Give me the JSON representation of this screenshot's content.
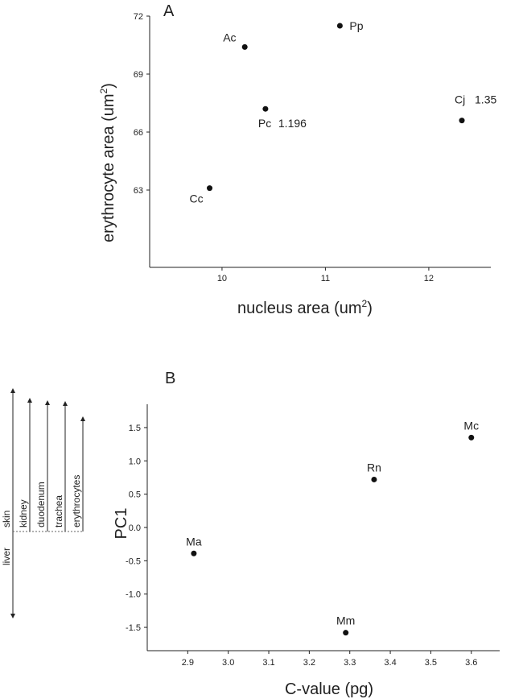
{
  "chart_data": [
    {
      "type": "scatter",
      "panel_label": "A",
      "xlabel": "nucleus area (um",
      "xlabel_sup": "2",
      "xlabel_end": ")",
      "ylabel": "erythrocyte area (um",
      "ylabel_sup": "2",
      "ylabel_end": ")",
      "xlim": [
        9.3,
        12.6
      ],
      "ylim": [
        59,
        72
      ],
      "xticks": [
        10,
        11,
        12
      ],
      "yticks": [
        63,
        66,
        69,
        72
      ],
      "grid": false,
      "points": [
        {
          "label": "Ac",
          "x": 10.22,
          "y": 70.4
        },
        {
          "label": "Pp",
          "x": 11.14,
          "y": 71.5
        },
        {
          "label": "Pc",
          "x": 10.42,
          "y": 67.2,
          "annotation": "1.196"
        },
        {
          "label": "Cj",
          "x": 12.32,
          "y": 66.6,
          "annotation": "1.35"
        },
        {
          "label": "Cc",
          "x": 9.88,
          "y": 63.1
        }
      ]
    },
    {
      "type": "scatter",
      "panel_label": "B",
      "xlabel": "C-value (pg)",
      "ylabel": "PC1",
      "xlim": [
        2.8,
        3.67
      ],
      "ylim": [
        -1.85,
        1.85
      ],
      "xticks": [
        "2.9",
        "3.0",
        "3.1",
        "3.2",
        "3.3",
        "3.4",
        "3.5",
        "3.6"
      ],
      "yticks": [
        "1.5",
        "1.0",
        "0.5",
        "0.0",
        "-0.5",
        "-1.0",
        "-1.5"
      ],
      "grid": false,
      "points": [
        {
          "label": "Mc",
          "x": 3.6,
          "y": 1.35
        },
        {
          "label": "Rn",
          "x": 3.36,
          "y": 0.72
        },
        {
          "label": "Ma",
          "x": 2.915,
          "y": -0.39
        },
        {
          "label": "Mm",
          "x": 3.29,
          "y": -1.58
        }
      ]
    }
  ],
  "side_diagram": {
    "labels": [
      "liver",
      "skin",
      "kidney",
      "duodenum",
      "trachea",
      "erythrocytes"
    ]
  }
}
